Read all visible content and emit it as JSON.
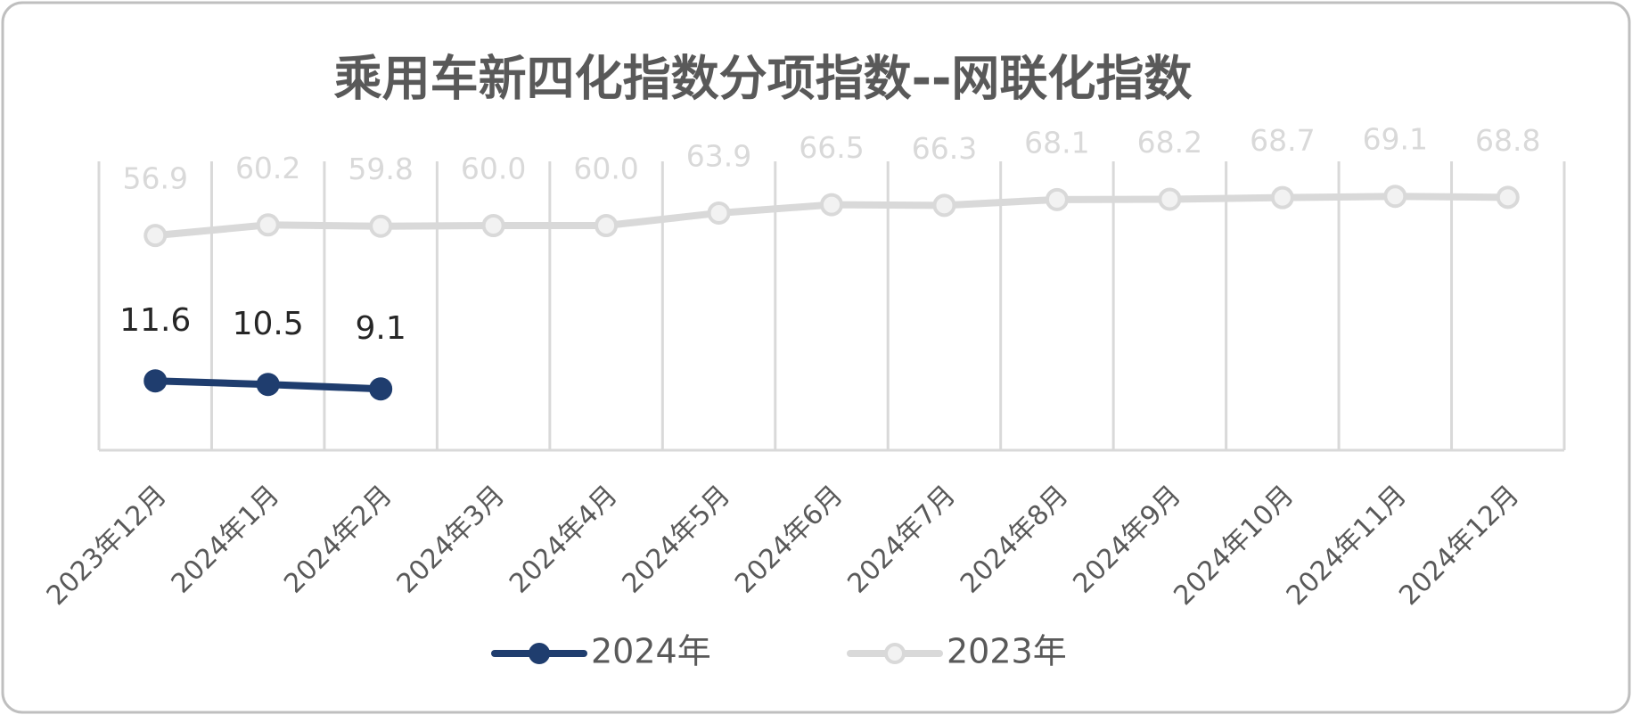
{
  "chart_data": {
    "type": "line",
    "title": "乘用车新四化指数分项指数--网联化指数",
    "categories": [
      "2023年12月",
      "2024年1月",
      "2024年2月",
      "2024年3月",
      "2024年4月",
      "2024年5月",
      "2024年6月",
      "2024年7月",
      "2024年8月",
      "2024年9月",
      "2024年10月",
      "2024年11月",
      "2024年12月"
    ],
    "series": [
      {
        "name": "2024年",
        "color": "#1f3d6e",
        "values": [
          11.6,
          10.5,
          9.1,
          null,
          null,
          null,
          null,
          null,
          null,
          null,
          null,
          null,
          null
        ]
      },
      {
        "name": "2023年",
        "color": "#d9d9d9",
        "values": [
          56.9,
          60.2,
          59.8,
          60.0,
          60.0,
          63.9,
          66.5,
          66.3,
          68.1,
          68.2,
          68.7,
          69.1,
          68.8
        ],
        "value_labels": [
          "56.9",
          "60.2",
          "59.8",
          "60.0",
          "60.0",
          "63.9",
          "66.5",
          "66.3",
          "68.1",
          "68.2",
          "68.7",
          "69.1",
          "68.8"
        ]
      }
    ],
    "ylim": [
      -10,
      80
    ],
    "grid": true
  }
}
